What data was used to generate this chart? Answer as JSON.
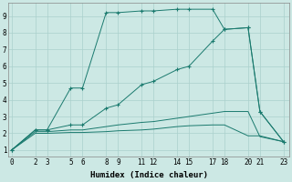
{
  "xlabel": "Humidex (Indice chaleur)",
  "bg_color": "#cce8e4",
  "grid_color": "#aad0cc",
  "line_color": "#1a7a6e",
  "lines": [
    {
      "x": [
        0,
        2,
        3,
        5,
        6,
        8,
        9,
        11,
        12,
        14,
        15,
        17,
        18,
        20,
        21,
        23
      ],
      "y": [
        1.0,
        2.2,
        2.2,
        4.7,
        4.7,
        9.2,
        9.2,
        9.3,
        9.3,
        9.4,
        9.4,
        9.4,
        8.2,
        8.3,
        3.3,
        1.5
      ],
      "marker": "+"
    },
    {
      "x": [
        0,
        2,
        3,
        5,
        6,
        8,
        9,
        11,
        12,
        14,
        15,
        17,
        18,
        20,
        21,
        23
      ],
      "y": [
        1.0,
        2.2,
        2.2,
        2.5,
        2.5,
        3.5,
        3.7,
        4.9,
        5.1,
        5.8,
        6.0,
        7.5,
        8.2,
        8.3,
        3.3,
        1.5
      ],
      "marker": "+"
    },
    {
      "x": [
        0,
        2,
        3,
        5,
        6,
        8,
        9,
        11,
        12,
        14,
        15,
        17,
        18,
        20,
        21,
        23
      ],
      "y": [
        1.0,
        2.1,
        2.1,
        2.2,
        2.2,
        2.4,
        2.5,
        2.65,
        2.7,
        2.9,
        3.0,
        3.2,
        3.3,
        3.3,
        1.8,
        1.5
      ],
      "marker": null
    },
    {
      "x": [
        0,
        2,
        3,
        5,
        6,
        8,
        9,
        11,
        12,
        14,
        15,
        17,
        18,
        20,
        21,
        23
      ],
      "y": [
        1.0,
        2.0,
        2.0,
        2.05,
        2.05,
        2.1,
        2.15,
        2.2,
        2.25,
        2.4,
        2.45,
        2.5,
        2.5,
        1.85,
        1.85,
        1.5
      ],
      "marker": null
    }
  ],
  "xticks": [
    0,
    2,
    3,
    5,
    6,
    8,
    9,
    11,
    12,
    14,
    15,
    17,
    18,
    20,
    21,
    23
  ],
  "yticks": [
    1,
    2,
    3,
    4,
    5,
    6,
    7,
    8,
    9
  ],
  "xlim": [
    -0.3,
    23.5
  ],
  "ylim": [
    0.6,
    9.8
  ]
}
